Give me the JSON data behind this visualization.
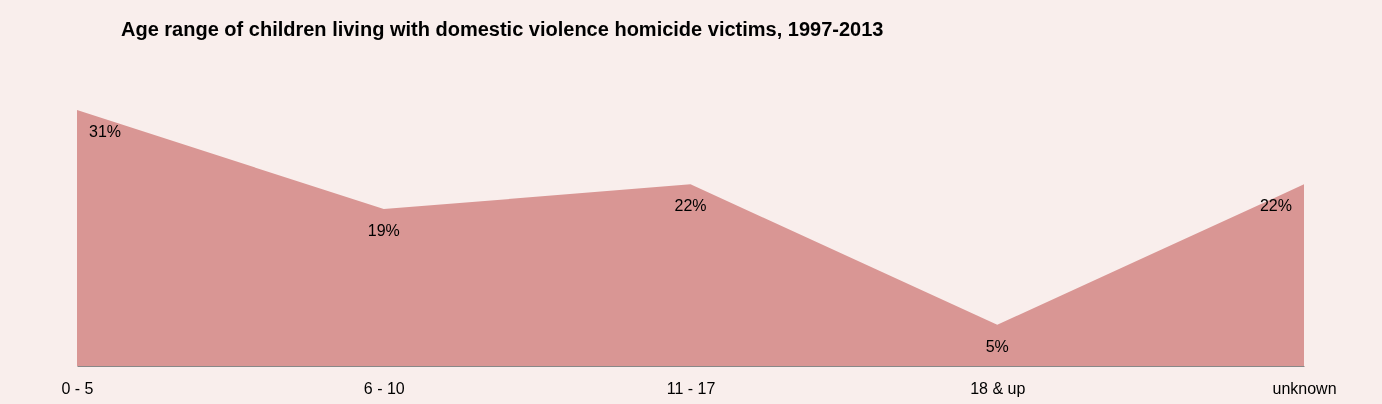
{
  "chart_data": {
    "type": "area",
    "title": "Age range of children living with domestic violence homicide victims, 1997-2013",
    "categories": [
      "0 - 5",
      "6 - 10",
      "11 - 17",
      "18 & up",
      "unknown"
    ],
    "series": [
      {
        "color": "#d99694",
        "values": [
          31,
          19,
          22,
          5,
          22
        ],
        "value_labels": [
          "31%",
          "19%",
          "22%",
          "5%",
          "22%"
        ]
      }
    ],
    "grid": false
  }
}
